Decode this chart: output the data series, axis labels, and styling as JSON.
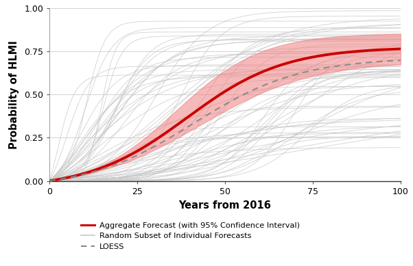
{
  "title": "",
  "xlabel": "Years from 2016",
  "ylabel": "Probability of HLMI",
  "xlim": [
    0,
    100
  ],
  "ylim": [
    0,
    1.0
  ],
  "xticks": [
    0,
    25,
    50,
    75,
    100
  ],
  "yticks": [
    0.0,
    0.25,
    0.5,
    0.75,
    1.0
  ],
  "aggregate_color": "#cc0000",
  "ci_color": "#f08080",
  "loess_color": "#888888",
  "individual_color": "#c8c8c8",
  "background_color": "#ffffff",
  "legend_labels": [
    "Aggregate Forecast (with 95% Confidence Interval)",
    "Random Subset of Individual Forecasts",
    "LOESS"
  ],
  "figsize": [
    6.02,
    3.89
  ],
  "dpi": 100
}
